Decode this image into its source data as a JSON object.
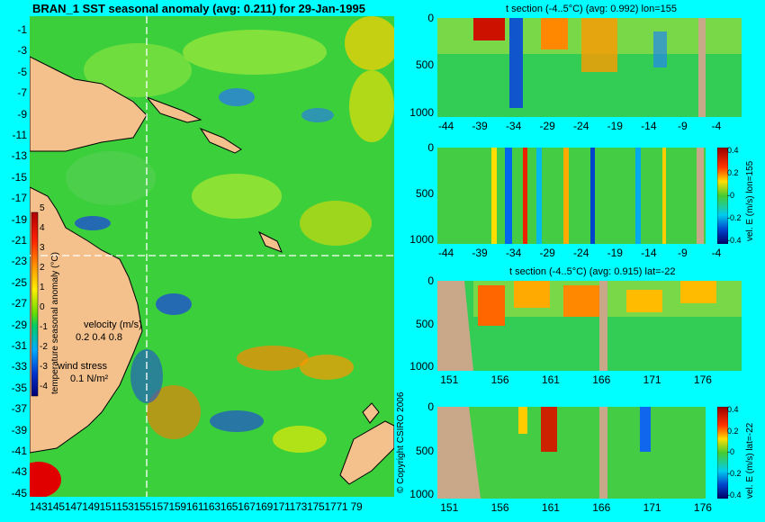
{
  "map": {
    "title": "BRAN_1 SST seasonal anomaly (avg: 0.211) for 29-Jan-1995",
    "y_ticks": [
      "-1",
      "-3",
      "-5",
      "-7",
      "-9",
      "-11",
      "-13",
      "-15",
      "-17",
      "-19",
      "-21",
      "-23",
      "-25",
      "-27",
      "-29",
      "-31",
      "-33",
      "-35",
      "-37",
      "-39",
      "-41",
      "-43",
      "-45"
    ],
    "x_ticks_label": "1431451471491511531551571591611631651671691711731751771 79",
    "colorbar_label": "temperature seasonal anomaly (°C)",
    "colorbar_ticks": [
      "5",
      "4",
      "3",
      "2",
      "1",
      "0",
      "-1",
      "-2",
      "-3",
      "-4"
    ],
    "velocity_label": "velocity (m/s)",
    "velocity_scale": "0.2 0.4 0.8",
    "wind_label": "wind stress",
    "wind_scale": "0.1 N/m²",
    "copyright": "© Copyright CSIRO 2006"
  },
  "chart_data": [
    {
      "type": "heatmap",
      "title": "BRAN_1 SST seasonal anomaly (avg: 0.211) for 29-Jan-1995",
      "x_range": [
        143,
        180
      ],
      "y_range": [
        -45,
        0
      ],
      "xticks": [
        143,
        145,
        147,
        149,
        151,
        153,
        155,
        157,
        159,
        161,
        163,
        165,
        167,
        169,
        171,
        173,
        175,
        177,
        179
      ],
      "yticks": [
        -1,
        -3,
        -5,
        -7,
        -9,
        -11,
        -13,
        -15,
        -17,
        -19,
        -21,
        -23,
        -25,
        -27,
        -29,
        -31,
        -33,
        -35,
        -37,
        -39,
        -41,
        -43,
        -45
      ],
      "colorbar": {
        "label": "temperature seasonal anomaly (°C)",
        "min": -4,
        "max": 5
      },
      "section_lines": {
        "lon": 155,
        "lat": -22
      }
    },
    {
      "type": "heatmap",
      "title": "t section (-4..5°C) (avg: 0.992) lon=155",
      "xticks": [
        -44,
        -39,
        -34,
        -29,
        -24,
        -19,
        -14,
        -9,
        -4
      ],
      "yticks": [
        0,
        500,
        1000
      ]
    },
    {
      "type": "heatmap",
      "title": "",
      "xticks": [
        -44,
        -39,
        -34,
        -29,
        -24,
        -19,
        -14,
        -9,
        -4
      ],
      "yticks": [
        0,
        500,
        1000
      ],
      "colorbar": {
        "label": "vel. E (m/s) lon=155",
        "ticks": [
          "0.4",
          "0.2",
          "-0",
          "-0.2",
          "-0.4"
        ]
      }
    },
    {
      "type": "heatmap",
      "title": "t section (-4..5°C) (avg: 0.915) lat=-22",
      "xticks": [
        151,
        156,
        161,
        166,
        171,
        176
      ],
      "yticks": [
        0,
        500,
        1000
      ]
    },
    {
      "type": "heatmap",
      "title": "",
      "xticks": [
        151,
        156,
        161,
        166,
        171,
        176
      ],
      "yticks": [
        0,
        500,
        1000
      ],
      "colorbar": {
        "label": "vel. E (m/s) lat=-22",
        "ticks": [
          "0.4",
          "0.2",
          "-0",
          "-0.2",
          "-0.4"
        ]
      }
    }
  ]
}
